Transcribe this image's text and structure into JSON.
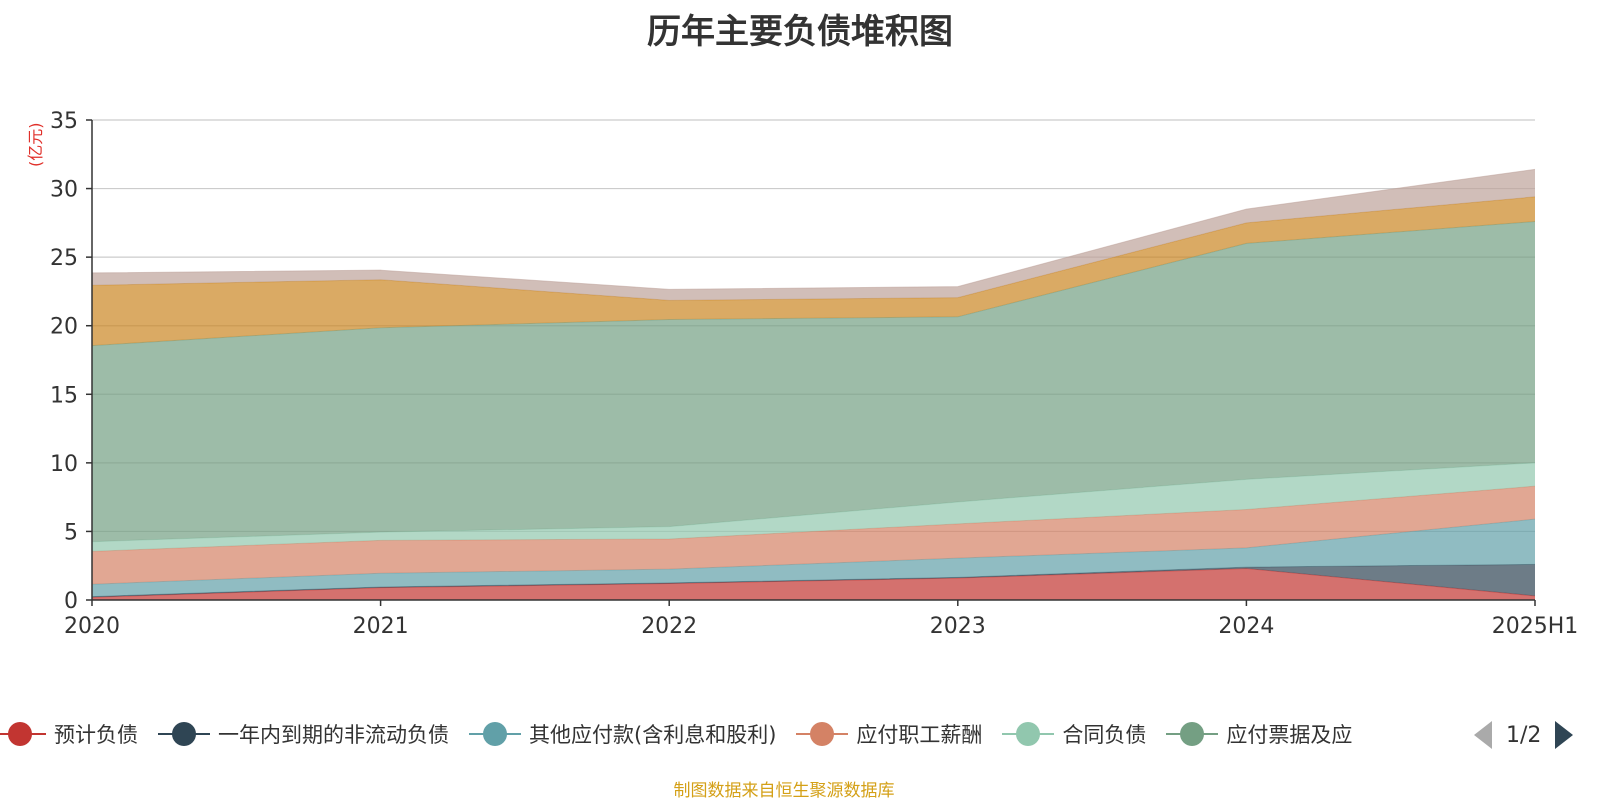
{
  "chart_data": {
    "type": "area",
    "stacked": true,
    "title": "历年主要负债堆积图",
    "ylabel": "(亿元)",
    "categories": [
      "2020",
      "2021",
      "2022",
      "2023",
      "2024",
      "2025H1"
    ],
    "ylim": [
      0,
      35
    ],
    "yticks": [
      0,
      5,
      10,
      15,
      20,
      25,
      30,
      35
    ],
    "grid": true,
    "series": [
      {
        "name": "预计负债",
        "color": "#c23531",
        "values": [
          0.2,
          0.9,
          1.2,
          1.6,
          2.3,
          0.3
        ]
      },
      {
        "name": "一年内到期的非流动负债",
        "color": "#2f4554",
        "values": [
          0.05,
          0.05,
          0.05,
          0.05,
          0.1,
          2.3
        ]
      },
      {
        "name": "其他应付款(含利息和股利)",
        "color": "#61a0a8",
        "values": [
          0.9,
          1.0,
          1.0,
          1.4,
          1.4,
          3.3
        ]
      },
      {
        "name": "应付职工薪酬",
        "color": "#d48265",
        "values": [
          2.4,
          2.4,
          2.2,
          2.5,
          2.8,
          2.4
        ]
      },
      {
        "name": "合同负债",
        "color": "#91c7ae",
        "values": [
          0.7,
          0.6,
          0.9,
          1.6,
          2.2,
          1.7
        ]
      },
      {
        "name": "应付票据及应付账款",
        "color": "#749f83",
        "values": [
          14.3,
          14.9,
          15.1,
          13.5,
          17.2,
          17.6
        ]
      },
      {
        "name": "",
        "color": "#ca8622",
        "values": [
          4.4,
          3.5,
          1.4,
          1.4,
          1.5,
          1.8
        ]
      },
      {
        "name": "",
        "color": "#bda29a",
        "values": [
          0.9,
          0.7,
          0.8,
          0.8,
          1.0,
          2.0
        ]
      }
    ]
  },
  "legend": {
    "items": [
      "预计负债",
      "一年内到期的非流动负债",
      "其他应付款(含利息和股利)",
      "应付职工薪酬",
      "合同负债",
      "应付票据及应"
    ],
    "colors": [
      "#c23531",
      "#2f4554",
      "#61a0a8",
      "#d48265",
      "#91c7ae",
      "#749f83"
    ],
    "page": "1/2"
  },
  "source_note": "制图数据来自恒生聚源数据库"
}
